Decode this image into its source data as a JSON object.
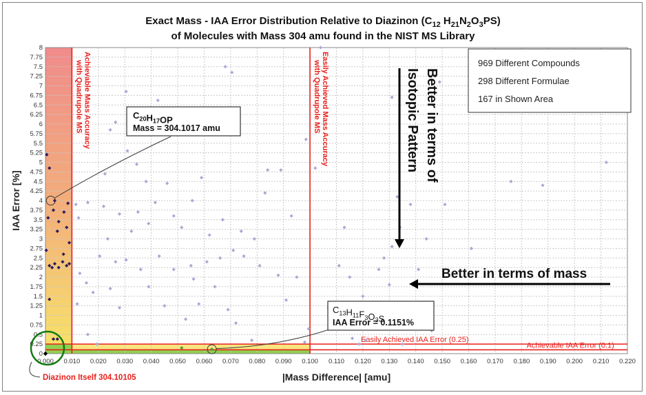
{
  "colors": {
    "grid": "#c8c8c8",
    "point_light": "#a9a9d6",
    "point_dark": "#2e1b5c",
    "point_green": "#4a9a3a",
    "red": "#e8201c",
    "red_zone": "#f08b8b",
    "yellow_zone": "#f7e06a",
    "green_zone": "#90d050",
    "ann_circle": "#3a3a3a",
    "diazinon_circle": "#117a11"
  },
  "chart_data": {
    "type": "scatter",
    "title_line1_pre": "Exact Mass - IAA Error Distribution Relative to Diazinon (C",
    "title_line1_formula": [
      {
        "t": "12",
        "sub": true
      },
      {
        "t": " H",
        "sub": false
      },
      {
        "t": "21",
        "sub": true
      },
      {
        "t": "N",
        "sub": false
      },
      {
        "t": "2",
        "sub": true
      },
      {
        "t": "O",
        "sub": false
      },
      {
        "t": "3",
        "sub": true
      },
      {
        "t": "PS)",
        "sub": false
      }
    ],
    "title_line2": "of Molecules with Mass 304 amu found in the NIST MS Library",
    "xlabel": "|Mass Difference| [amu]",
    "ylabel": "IAA Error [%]",
    "xlim": [
      0,
      0.22
    ],
    "ylim": [
      0,
      8
    ],
    "x_ticks": [
      "0.000",
      "0.010",
      "0.020",
      "0.030",
      "0.040",
      "0.050",
      "0.060",
      "0.070",
      "0.080",
      "0.090",
      "0.100",
      "0.110",
      "0.120",
      "0.130",
      "0.140",
      "0.150",
      "0.160",
      "0.170",
      "0.180",
      "0.190",
      "0.200",
      "0.210",
      "0.220"
    ],
    "y_ticks": [
      "0",
      "0.25",
      "0.5",
      "0.75",
      "1",
      "1.25",
      "1.5",
      "1.75",
      "2",
      "2.25",
      "2.5",
      "2.75",
      "3",
      "3.25",
      "3.5",
      "3.75",
      "4",
      "4.25",
      "4.5",
      "4.75",
      "5",
      "5.25",
      "5.5",
      "5.75",
      "6",
      "6.25",
      "6.5",
      "6.75",
      "7",
      "7.25",
      "7.5",
      "7.75",
      "8"
    ],
    "grid": true,
    "vertical_lines": [
      {
        "x": 0.01,
        "label1": "Achievable Mass Accuracy",
        "label2": "with Quadrupole MS"
      },
      {
        "x": 0.1,
        "label1": "Easily Achieved Mass Accuracy",
        "label2": "with Quadrupole MS"
      }
    ],
    "horizontal_lines": [
      {
        "y": 0.25,
        "label": "Easily Achieved IAA Error (0.25)"
      },
      {
        "y": 0.1,
        "label": "Achievable IAA Error (0.1)"
      }
    ],
    "info_box": [
      "969 Different Compounds",
      "298 Different Formulae",
      "167 in Shown Area"
    ],
    "arrow_vertical_label": [
      "Better in terms of",
      "Isotopic Pattern"
    ],
    "arrow_horizontal_label": "Better in terms of mass",
    "annotation_1": {
      "formula": [
        {
          "t": "C",
          "sub": false
        },
        {
          "t": "20",
          "sub": true
        },
        {
          "t": "H",
          "sub": false
        },
        {
          "t": "17",
          "sub": true
        },
        {
          "t": "OP",
          "sub": false
        }
      ],
      "line2": "Mass = 304.1017 amu",
      "point": {
        "x": 0.0015,
        "y": 4.0
      }
    },
    "annotation_2": {
      "formula": [
        {
          "t": "C",
          "sub": false
        },
        {
          "t": "13",
          "sub": true
        },
        {
          "t": "H",
          "sub": false
        },
        {
          "t": "11",
          "sub": true
        },
        {
          "t": "F",
          "sub": false
        },
        {
          "t": "3",
          "sub": true
        },
        {
          "t": "O",
          "sub": false
        },
        {
          "t": "3",
          "sub": true
        },
        {
          "t": "S",
          "sub": false
        }
      ],
      "line2": "IAA Error = 0.1151%",
      "point": {
        "x": 0.0629,
        "y": 0.115
      }
    },
    "diazinon_label": "Diazinon Itself  304.10105",
    "diazinon_point": {
      "x": 0.0,
      "y": 0.0
    },
    "series_dark": [
      [
        0.0005,
        5.2
      ],
      [
        0.0015,
        4.85
      ],
      [
        0.0035,
        4.0
      ],
      [
        0.0085,
        3.93
      ],
      [
        0.003,
        3.75
      ],
      [
        0.007,
        3.7
      ],
      [
        0.001,
        3.55
      ],
      [
        0.005,
        3.45
      ],
      [
        0.008,
        3.3
      ],
      [
        0.0045,
        3.2
      ],
      [
        0.009,
        2.9
      ],
      [
        0.0003,
        2.7
      ],
      [
        0.0068,
        2.6
      ],
      [
        0.0035,
        2.35
      ],
      [
        0.005,
        2.25
      ],
      [
        0.0015,
        2.3
      ],
      [
        0.0025,
        2.25
      ],
      [
        0.0065,
        2.4
      ],
      [
        0.008,
        2.3
      ],
      [
        0.009,
        2.35
      ],
      [
        0.0015,
        1.42
      ],
      [
        0.003,
        0.38
      ],
      [
        0.0045,
        0.38
      ]
    ],
    "series_light": [
      [
        0.0115,
        3.9
      ],
      [
        0.0125,
        3.55
      ],
      [
        0.016,
        3.95
      ],
      [
        0.022,
        3.85
      ],
      [
        0.028,
        3.65
      ],
      [
        0.035,
        3.7
      ],
      [
        0.039,
        3.4
      ],
      [
        0.0325,
        3.2
      ],
      [
        0.0235,
        3.0
      ],
      [
        0.0205,
        2.55
      ],
      [
        0.0265,
        2.4
      ],
      [
        0.0305,
        2.45
      ],
      [
        0.036,
        2.2
      ],
      [
        0.043,
        2.55
      ],
      [
        0.0485,
        2.2
      ],
      [
        0.055,
        2.3
      ],
      [
        0.061,
        2.4
      ],
      [
        0.066,
        2.5
      ],
      [
        0.071,
        2.7
      ],
      [
        0.075,
        2.55
      ],
      [
        0.081,
        2.3
      ],
      [
        0.088,
        2.05
      ],
      [
        0.095,
        2.0
      ],
      [
        0.013,
        2.1
      ],
      [
        0.0155,
        1.85
      ],
      [
        0.018,
        1.6
      ],
      [
        0.0245,
        1.7
      ],
      [
        0.012,
        1.3
      ],
      [
        0.016,
        0.5
      ],
      [
        0.0195,
        0.25
      ],
      [
        0.028,
        1.2
      ],
      [
        0.045,
        1.25
      ],
      [
        0.058,
        1.3
      ],
      [
        0.069,
        1.15
      ],
      [
        0.072,
        0.8
      ],
      [
        0.078,
        0.35
      ],
      [
        0.091,
        1.4
      ],
      [
        0.098,
        0.3
      ],
      [
        0.053,
        0.9
      ],
      [
        0.064,
        1.75
      ],
      [
        0.039,
        1.75
      ],
      [
        0.056,
        1.95
      ],
      [
        0.038,
        4.5
      ],
      [
        0.046,
        4.45
      ],
      [
        0.059,
        4.6
      ],
      [
        0.062,
        3.1
      ],
      [
        0.0555,
        4.0
      ],
      [
        0.067,
        3.5
      ],
      [
        0.074,
        3.2
      ],
      [
        0.079,
        3.0
      ],
      [
        0.084,
        4.8
      ],
      [
        0.083,
        4.2
      ],
      [
        0.089,
        4.8
      ],
      [
        0.093,
        3.6
      ],
      [
        0.0265,
        6.05
      ],
      [
        0.0305,
        6.85
      ],
      [
        0.0245,
        5.85
      ],
      [
        0.031,
        5.3
      ],
      [
        0.0425,
        6.62
      ],
      [
        0.0225,
        4.7
      ],
      [
        0.0345,
        4.95
      ],
      [
        0.0415,
        3.95
      ],
      [
        0.0485,
        3.6
      ],
      [
        0.0515,
        3.3
      ],
      [
        0.0705,
        7.35
      ],
      [
        0.068,
        7.5
      ],
      [
        0.0985,
        5.6
      ],
      [
        0.102,
        4.85
      ],
      [
        0.104,
        8.0
      ],
      [
        0.111,
        2.3
      ],
      [
        0.113,
        3.3
      ],
      [
        0.115,
        2.0
      ],
      [
        0.117,
        1.25
      ],
      [
        0.12,
        1.5
      ],
      [
        0.122,
        0.9
      ],
      [
        0.125,
        1.0
      ],
      [
        0.128,
        2.5
      ],
      [
        0.13,
        1.8
      ],
      [
        0.131,
        2.8
      ],
      [
        0.134,
        3.3
      ],
      [
        0.138,
        3.9
      ],
      [
        0.141,
        2.2
      ],
      [
        0.144,
        3.0
      ],
      [
        0.146,
        0.6
      ],
      [
        0.151,
        3.9
      ],
      [
        0.116,
        0.4
      ],
      [
        0.121,
        0.35
      ],
      [
        0.109,
        1.0
      ],
      [
        0.135,
        0.25
      ],
      [
        0.149,
        7.1
      ],
      [
        0.131,
        6.7
      ],
      [
        0.133,
        4.1
      ],
      [
        0.161,
        2.75
      ],
      [
        0.176,
        4.5
      ],
      [
        0.188,
        4.4
      ],
      [
        0.212,
        5.0
      ],
      [
        0.119,
        1.1
      ],
      [
        0.126,
        2.2
      ],
      [
        0.107,
        1.2
      ],
      [
        0.1115,
        0.7
      ],
      [
        0.1185,
        0.25
      ],
      [
        0.0995,
        0.65
      ]
    ],
    "series_green": [
      [
        0.0515,
        0.15
      ],
      [
        0.0629,
        0.115
      ]
    ]
  }
}
